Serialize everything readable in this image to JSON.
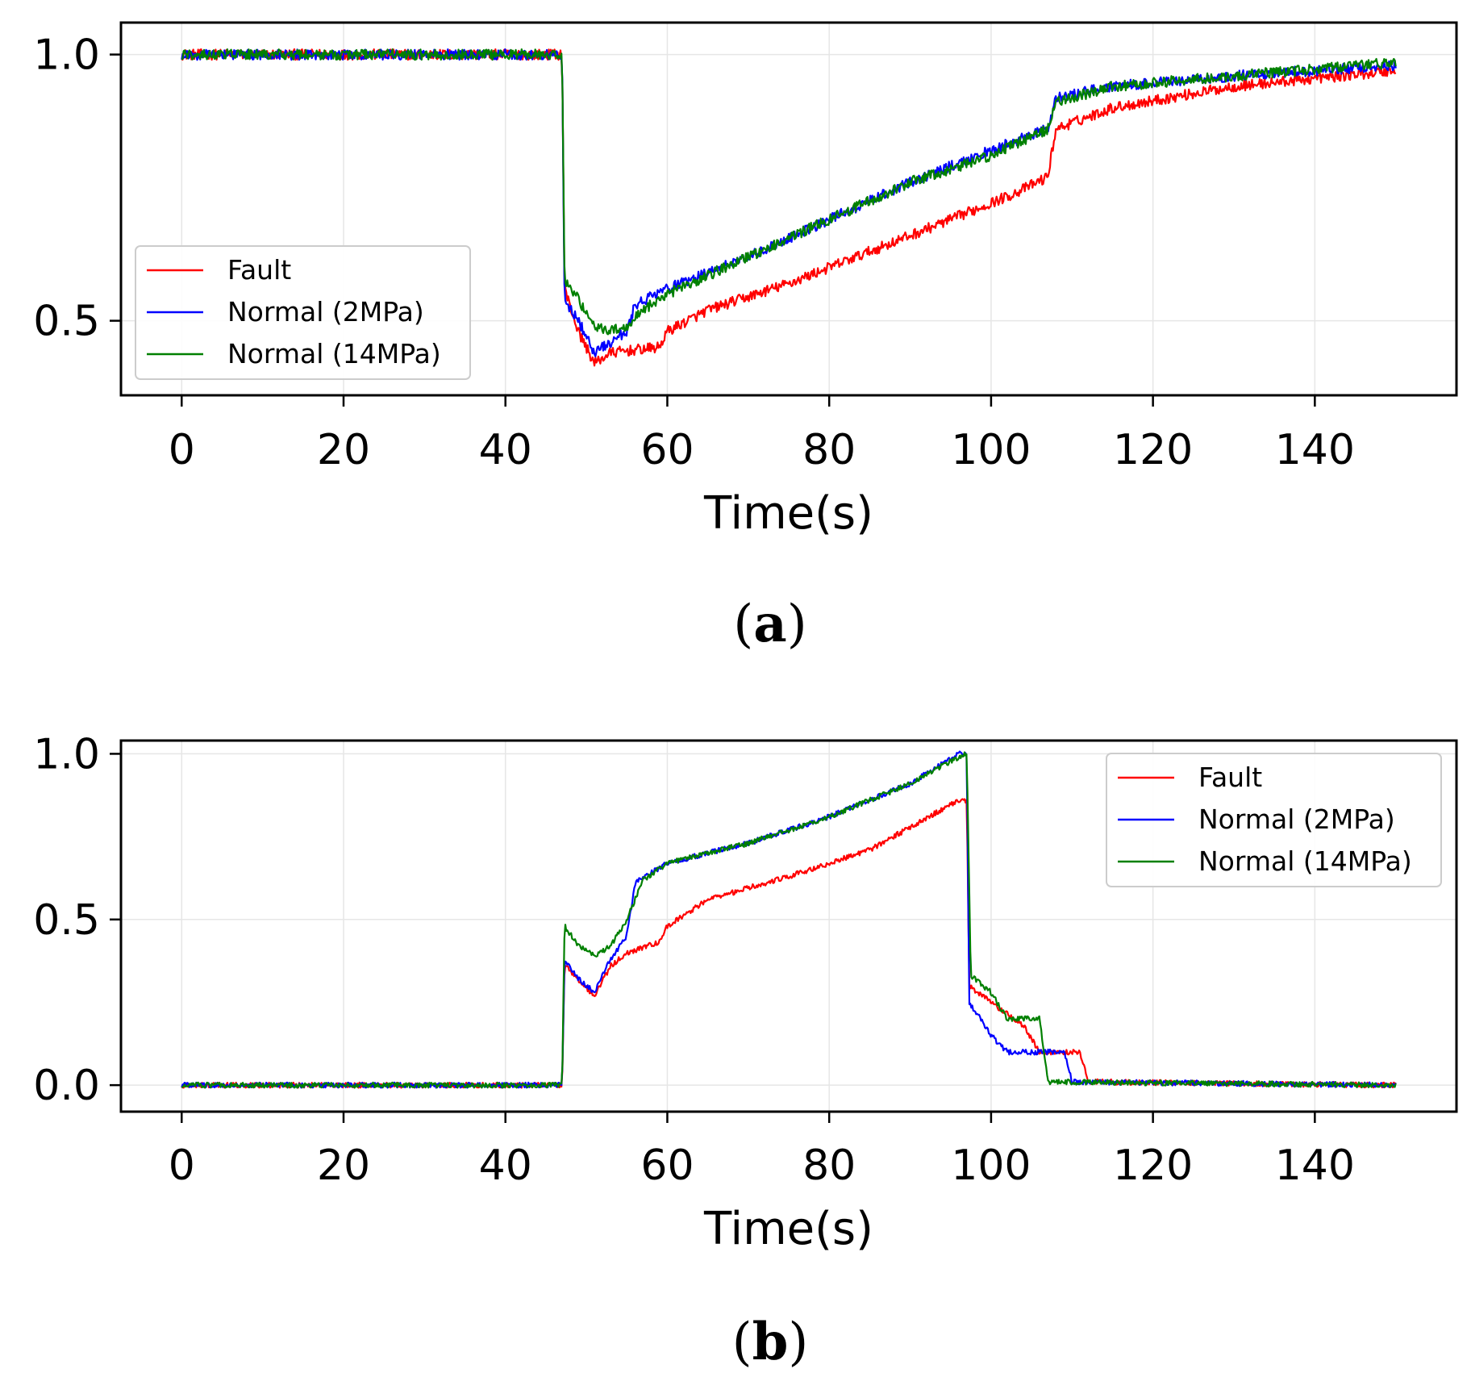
{
  "colors": {
    "fault": "#ff0000",
    "normal_2mpa": "#0000ff",
    "normal_14mpa": "#008000",
    "grid": "#e6e6e6"
  },
  "chart_data": [
    {
      "type": "line",
      "caption_letter": "a",
      "xlabel": "Time(s)",
      "ylabel": "",
      "xlim": [
        -7.5,
        157.5
      ],
      "ylim": [
        0.36,
        1.06
      ],
      "xticks": [
        0,
        20,
        40,
        60,
        80,
        100,
        120,
        140
      ],
      "xtick_labels": [
        "0",
        "20",
        "40",
        "60",
        "80",
        "100",
        "120",
        "140"
      ],
      "yticks": [
        0.5,
        1.0
      ],
      "ytick_labels": [
        "0.5",
        "1.0"
      ],
      "grid": true,
      "legend_position": "center-left",
      "noise": 0.01,
      "series": [
        {
          "name": "Fault",
          "color_key": "fault",
          "points": [
            [
              0,
              1.0
            ],
            [
              47,
              1.0
            ],
            [
              47.3,
              0.56
            ],
            [
              49,
              0.48
            ],
            [
              51,
              0.42
            ],
            [
              53,
              0.44
            ],
            [
              56,
              0.445
            ],
            [
              59,
              0.45
            ],
            [
              60,
              0.48
            ],
            [
              65,
              0.52
            ],
            [
              75,
              0.57
            ],
            [
              85,
              0.63
            ],
            [
              95,
              0.69
            ],
            [
              103,
              0.74
            ],
            [
              107,
              0.77
            ],
            [
              108,
              0.86
            ],
            [
              115,
              0.9
            ],
            [
              130,
              0.94
            ],
            [
              150,
              0.97
            ]
          ]
        },
        {
          "name": "Normal (2MPa)",
          "color_key": "normal_2mpa",
          "points": [
            [
              0,
              1.0
            ],
            [
              47,
              1.0
            ],
            [
              47.3,
              0.54
            ],
            [
              49,
              0.5
            ],
            [
              51,
              0.44
            ],
            [
              53,
              0.46
            ],
            [
              55,
              0.48
            ],
            [
              56,
              0.53
            ],
            [
              60,
              0.56
            ],
            [
              70,
              0.62
            ],
            [
              80,
              0.69
            ],
            [
              90,
              0.76
            ],
            [
              100,
              0.82
            ],
            [
              107,
              0.86
            ],
            [
              108,
              0.92
            ],
            [
              115,
              0.94
            ],
            [
              130,
              0.96
            ],
            [
              150,
              0.98
            ]
          ]
        },
        {
          "name": "Normal (14MPa)",
          "color_key": "normal_14mpa",
          "points": [
            [
              0,
              1.0
            ],
            [
              47,
              1.0
            ],
            [
              47.3,
              0.58
            ],
            [
              49,
              0.54
            ],
            [
              51,
              0.49
            ],
            [
              53,
              0.48
            ],
            [
              55,
              0.49
            ],
            [
              57,
              0.52
            ],
            [
              60,
              0.55
            ],
            [
              70,
              0.62
            ],
            [
              80,
              0.69
            ],
            [
              90,
              0.76
            ],
            [
              100,
              0.81
            ],
            [
              107,
              0.86
            ],
            [
              108,
              0.91
            ],
            [
              115,
              0.94
            ],
            [
              130,
              0.96
            ],
            [
              150,
              0.985
            ]
          ]
        }
      ]
    },
    {
      "type": "line",
      "caption_letter": "b",
      "xlabel": "Time(s)",
      "ylabel": "",
      "xlim": [
        -7.5,
        157.5
      ],
      "ylim": [
        -0.08,
        1.04
      ],
      "xticks": [
        0,
        20,
        40,
        60,
        80,
        100,
        120,
        140
      ],
      "xtick_labels": [
        "0",
        "20",
        "40",
        "60",
        "80",
        "100",
        "120",
        "140"
      ],
      "yticks": [
        0.0,
        0.5,
        1.0
      ],
      "ytick_labels": [
        "0.0",
        "0.5",
        "1.0"
      ],
      "grid": true,
      "legend_position": "top-right",
      "noise": 0.008,
      "series": [
        {
          "name": "Fault",
          "color_key": "fault",
          "points": [
            [
              0,
              0
            ],
            [
              47,
              0
            ],
            [
              47.3,
              0.36
            ],
            [
              49,
              0.32
            ],
            [
              51,
              0.27
            ],
            [
              53,
              0.36
            ],
            [
              55,
              0.4
            ],
            [
              59,
              0.43
            ],
            [
              60,
              0.48
            ],
            [
              65,
              0.56
            ],
            [
              75,
              0.63
            ],
            [
              85,
              0.71
            ],
            [
              96,
              0.86
            ],
            [
              97,
              0.86
            ],
            [
              97.3,
              0.3
            ],
            [
              100,
              0.25
            ],
            [
              104,
              0.18
            ],
            [
              106,
              0.1
            ],
            [
              111,
              0.1
            ],
            [
              112,
              0.01
            ],
            [
              150,
              0
            ]
          ]
        },
        {
          "name": "Normal (2MPa)",
          "color_key": "normal_2mpa",
          "points": [
            [
              0,
              0
            ],
            [
              47,
              0
            ],
            [
              47.3,
              0.38
            ],
            [
              49,
              0.32
            ],
            [
              51,
              0.28
            ],
            [
              53,
              0.38
            ],
            [
              55,
              0.45
            ],
            [
              56,
              0.61
            ],
            [
              60,
              0.67
            ],
            [
              70,
              0.73
            ],
            [
              80,
              0.81
            ],
            [
              90,
              0.91
            ],
            [
              96,
              1.0
            ],
            [
              97,
              1.0
            ],
            [
              97.3,
              0.25
            ],
            [
              100,
              0.15
            ],
            [
              102,
              0.1
            ],
            [
              109,
              0.1
            ],
            [
              110,
              0.01
            ],
            [
              150,
              0
            ]
          ]
        },
        {
          "name": "Normal (14MPa)",
          "color_key": "normal_14mpa",
          "points": [
            [
              0,
              0
            ],
            [
              47,
              0
            ],
            [
              47.3,
              0.48
            ],
            [
              49,
              0.42
            ],
            [
              51,
              0.39
            ],
            [
              53,
              0.42
            ],
            [
              55,
              0.5
            ],
            [
              57,
              0.62
            ],
            [
              60,
              0.67
            ],
            [
              70,
              0.73
            ],
            [
              80,
              0.81
            ],
            [
              90,
              0.91
            ],
            [
              96,
              0.99
            ],
            [
              97,
              1.0
            ],
            [
              97.5,
              0.33
            ],
            [
              100,
              0.28
            ],
            [
              102,
              0.2
            ],
            [
              106,
              0.2
            ],
            [
              107,
              0.01
            ],
            [
              150,
              0
            ]
          ]
        }
      ]
    }
  ]
}
